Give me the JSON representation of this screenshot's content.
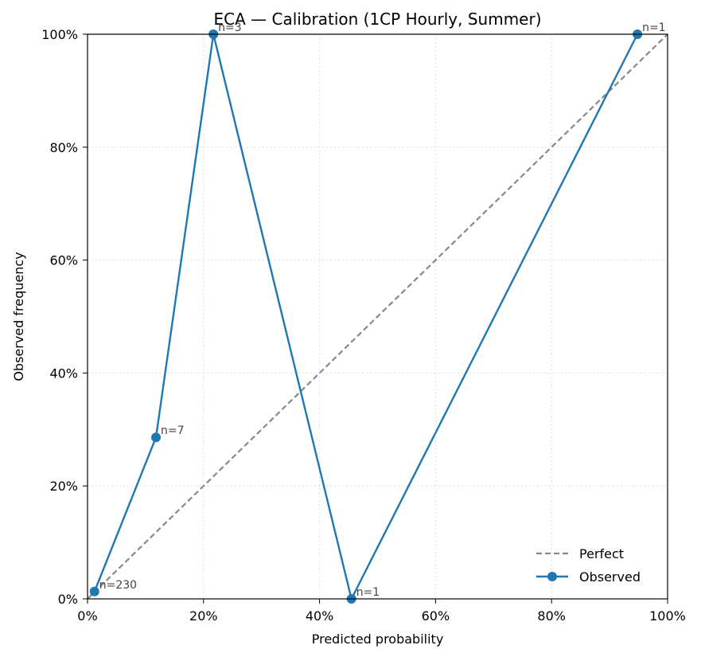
{
  "chart_data": {
    "type": "line",
    "title": "ECA — Calibration (1CP Hourly, Summer)",
    "xlabel": "Predicted probability",
    "ylabel": "Observed frequency",
    "xlim": [
      0,
      1
    ],
    "ylim": [
      0,
      1
    ],
    "x_ticks": [
      0,
      0.2,
      0.4,
      0.6,
      0.8,
      1.0
    ],
    "x_tick_labels": [
      "0%",
      "20%",
      "40%",
      "60%",
      "80%",
      "100%"
    ],
    "y_ticks": [
      0,
      0.2,
      0.4,
      0.6,
      0.8,
      1.0
    ],
    "y_tick_labels": [
      "0%",
      "20%",
      "40%",
      "60%",
      "80%",
      "100%"
    ],
    "grid": true,
    "legend_position": "bottom-right",
    "series": [
      {
        "name": "Perfect",
        "style": "dashed",
        "color": "#888888",
        "x": [
          0,
          1
        ],
        "y": [
          0,
          1
        ]
      },
      {
        "name": "Observed",
        "style": "line-marker",
        "color": "#1f77b4",
        "x": [
          0.012,
          0.118,
          0.217,
          0.455,
          0.948
        ],
        "y": [
          0.013,
          0.286,
          1.0,
          0.0,
          1.0
        ],
        "labels": [
          "n=230",
          "n=7",
          "n=3",
          "n=1",
          "n=1"
        ]
      }
    ]
  }
}
